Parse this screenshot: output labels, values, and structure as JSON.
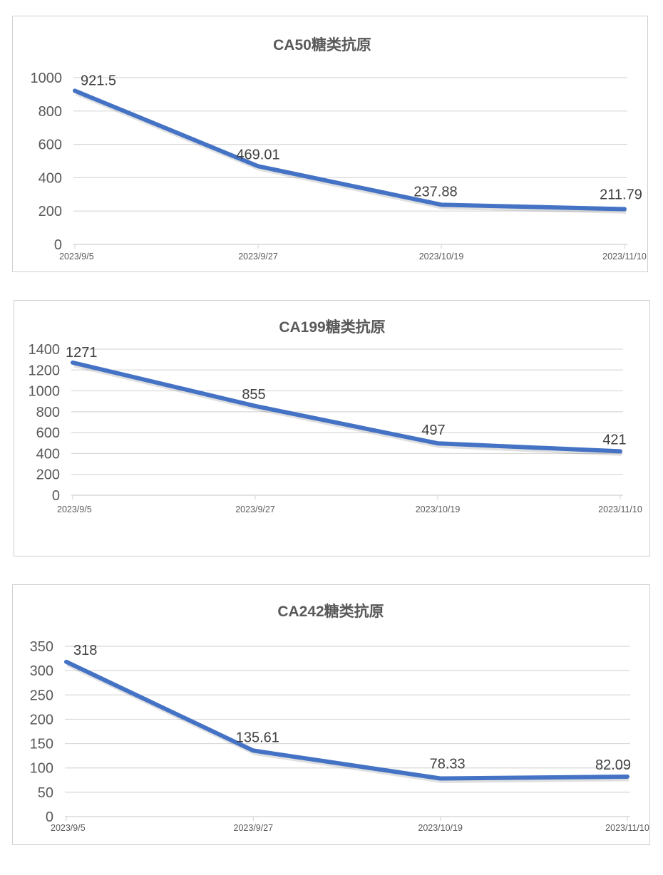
{
  "chart_data": [
    {
      "type": "line",
      "title": "CA50糖类抗原",
      "categories": [
        "2023/9/5",
        "2023/9/27",
        "2023/10/19",
        "2023/11/10"
      ],
      "series": [
        {
          "values": [
            921.5,
            469.01,
            237.88,
            211.79
          ],
          "labels": [
            "921.5",
            "469.01",
            "237.88",
            "211.79"
          ]
        }
      ],
      "ylim": [
        0,
        1000
      ],
      "yticks": [
        "0",
        "200",
        "400",
        "600",
        "800",
        "1000"
      ],
      "grid": true,
      "color": "#4472c4"
    },
    {
      "type": "line",
      "title": "CA199糖类抗原",
      "categories": [
        "2023/9/5",
        "2023/9/27",
        "2023/10/19",
        "2023/11/10"
      ],
      "series": [
        {
          "values": [
            1271,
            855,
            497,
            421
          ],
          "labels": [
            "1271",
            "855",
            "497",
            "421"
          ]
        }
      ],
      "ylim": [
        0,
        1400
      ],
      "yticks": [
        "0",
        "200",
        "400",
        "600",
        "800",
        "1000",
        "1200",
        "1400"
      ],
      "grid": true,
      "color": "#4472c4"
    },
    {
      "type": "line",
      "title": "CA242糖类抗原",
      "categories": [
        "2023/9/5",
        "2023/9/27",
        "2023/10/19",
        "2023/11/10"
      ],
      "series": [
        {
          "values": [
            318,
            135.61,
            78.33,
            82.09
          ],
          "labels": [
            "318",
            "135.61",
            "78.33",
            "82.09"
          ]
        }
      ],
      "ylim": [
        0,
        350
      ],
      "yticks": [
        "0",
        "50",
        "100",
        "150",
        "200",
        "250",
        "300",
        "350"
      ],
      "grid": true,
      "color": "#4472c4"
    }
  ]
}
